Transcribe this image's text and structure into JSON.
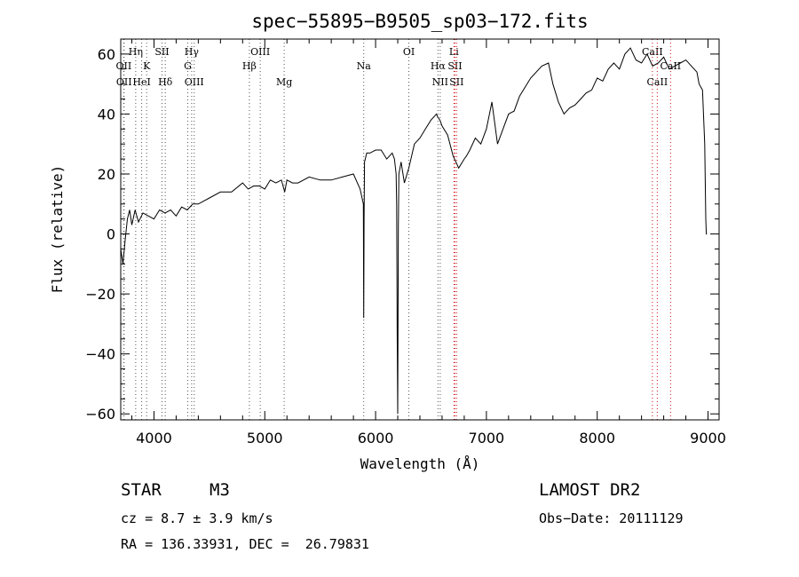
{
  "chart_data": {
    "type": "line",
    "title": "spec−55895−B9505_sp03−172.fits",
    "xlabel": "Wavelength (Å)",
    "ylabel": "Flux (relative)",
    "xlim": [
      3700,
      9100
    ],
    "ylim": [
      -62,
      65
    ],
    "xticks": [
      4000,
      5000,
      6000,
      7000,
      8000,
      9000
    ],
    "yticks": [
      -60,
      -40,
      -20,
      0,
      20,
      40,
      60
    ],
    "xtick_labels": [
      "4000",
      "5000",
      "6000",
      "7000",
      "8000",
      "9000"
    ],
    "ytick_labels": [
      "−60",
      "−40",
      "−20",
      "0",
      "20",
      "40",
      "60"
    ],
    "grid": false,
    "legend": "none",
    "series": [
      {
        "color": "#000000",
        "x": [
          3700,
          3720,
          3740,
          3760,
          3780,
          3800,
          3830,
          3860,
          3900,
          3950,
          4000,
          4050,
          4100,
          4150,
          4200,
          4250,
          4300,
          4350,
          4400,
          4450,
          4500,
          4600,
          4700,
          4800,
          4850,
          4900,
          4950,
          5000,
          5050,
          5100,
          5150,
          5180,
          5200,
          5250,
          5300,
          5400,
          5500,
          5600,
          5700,
          5800,
          5860,
          5890,
          5893,
          5896,
          5900,
          5920,
          5950,
          6000,
          6050,
          6100,
          6150,
          6170,
          6185,
          6190,
          6195,
          6200,
          6205,
          6210,
          6230,
          6260,
          6300,
          6350,
          6400,
          6450,
          6500,
          6550,
          6560,
          6580,
          6600,
          6650,
          6700,
          6750,
          6800,
          6820,
          6850,
          6900,
          6950,
          7000,
          7050,
          7100,
          7150,
          7200,
          7250,
          7300,
          7400,
          7500,
          7560,
          7600,
          7650,
          7700,
          7750,
          7800,
          7850,
          7900,
          7950,
          8000,
          8050,
          8100,
          8150,
          8200,
          8250,
          8300,
          8350,
          8400,
          8450,
          8500,
          8550,
          8600,
          8650,
          8700,
          8750,
          8800,
          8850,
          8900,
          8920,
          8950,
          8970,
          8980,
          8985,
          8990
        ],
        "y": [
          -5,
          -10,
          -2,
          5,
          8,
          3,
          8,
          4,
          7,
          6,
          5,
          8,
          7,
          8,
          6,
          9,
          8,
          10,
          10,
          11,
          12,
          14,
          14,
          17,
          15,
          16,
          16,
          15,
          18,
          17,
          18,
          14,
          18,
          17,
          17,
          19,
          18,
          18,
          19,
          20,
          15,
          10,
          -28,
          5,
          24,
          27,
          27,
          28,
          28,
          25,
          27,
          25,
          20,
          10,
          -33,
          -60,
          2,
          20,
          24,
          17,
          22,
          30,
          32,
          35,
          38,
          40,
          39,
          38,
          36,
          33,
          26,
          22,
          25,
          26,
          28,
          32,
          30,
          35,
          44,
          30,
          35,
          40,
          41,
          46,
          52,
          56,
          57,
          50,
          44,
          40,
          42,
          43,
          45,
          47,
          48,
          52,
          51,
          55,
          57,
          55,
          60,
          62,
          58,
          57,
          60,
          56,
          57,
          59,
          55,
          56,
          57,
          58,
          56,
          54,
          50,
          48,
          30,
          5,
          0,
          0
        ]
      }
    ],
    "spectral_lines": [
      {
        "x": 3727,
        "label": "OII",
        "row": 2
      },
      {
        "x": 3730,
        "label": "OII",
        "row": 3
      },
      {
        "x": 3835,
        "label": "Hη",
        "row": 1
      },
      {
        "x": 3889,
        "label": "HeI",
        "row": 3
      },
      {
        "x": 3934,
        "label": "K",
        "row": 2
      },
      {
        "x": 4072,
        "label": "SII",
        "row": 1
      },
      {
        "x": 4102,
        "label": "Hδ",
        "row": 3
      },
      {
        "x": 4305,
        "label": "G",
        "row": 2
      },
      {
        "x": 4340,
        "label": "Hγ",
        "row": 1
      },
      {
        "x": 4363,
        "label": "OIII",
        "row": 3
      },
      {
        "x": 4861,
        "label": "Hβ",
        "row": 2
      },
      {
        "x": 4959,
        "label": "OIII",
        "row": 1
      },
      {
        "x": 5175,
        "label": "Mg",
        "row": 3
      },
      {
        "x": 5893,
        "label": "Na",
        "row": 2
      },
      {
        "x": 6300,
        "label": "OI",
        "row": 1
      },
      {
        "x": 6563,
        "label": "Hα",
        "row": 2
      },
      {
        "x": 6583,
        "label": "NII",
        "row": 3
      },
      {
        "x": 6707,
        "label": "Li",
        "row": 1
      },
      {
        "x": 6716,
        "label": "SII",
        "row": 2
      },
      {
        "x": 6731,
        "label": "SII",
        "row": 3
      },
      {
        "x": 8498,
        "label": "CaII",
        "row": 1
      },
      {
        "x": 8542,
        "label": "CaII",
        "row": 3
      },
      {
        "x": 8662,
        "label": "CaII",
        "row": 2
      }
    ]
  },
  "info": {
    "object_class": "STAR",
    "subclass": "M3",
    "survey": "LAMOST DR2",
    "cz": "cz = 8.7 ± 3.9 km/s",
    "obs_date": "Obs−Date: 20111129",
    "coords": "RA = 136.33931, DEC =  26.79831"
  }
}
